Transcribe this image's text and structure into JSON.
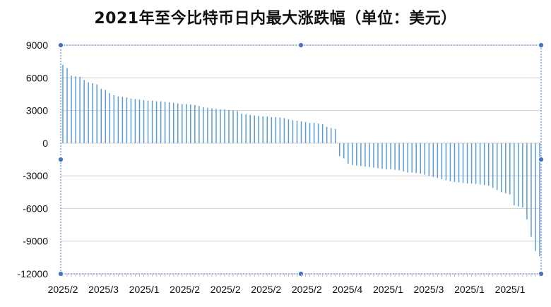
{
  "chart_data": {
    "type": "bar",
    "title": "2021年至今比特币日内最大涨跌幅（单位：美元）",
    "xlabel": "",
    "ylabel": "",
    "ylim": [
      -12000,
      9000
    ],
    "yticks": [
      9000,
      6000,
      3000,
      0,
      -3000,
      -6000,
      -9000,
      -12000
    ],
    "ytick_labels": [
      "9000",
      "6000",
      "3000",
      "0",
      "-3000",
      "-6000",
      "-9000",
      "-12000"
    ],
    "xtick_labels": [
      "2025/2",
      "2025/3",
      "2025/1",
      "2025/2",
      "2025/2",
      "2025/2",
      "2025/2",
      "2025/4",
      "2025/1",
      "2025/3",
      "2025/1",
      "2025/1"
    ],
    "grid": true,
    "bar_color": "#5b9bd5",
    "grid_color": "#d0d0d0",
    "handle_color": "#4472c4",
    "values": [
      7200,
      6900,
      6200,
      6150,
      6100,
      5800,
      5600,
      5500,
      5400,
      5000,
      4900,
      4600,
      4400,
      4300,
      4250,
      4200,
      4100,
      4050,
      4000,
      3950,
      3900,
      3900,
      3850,
      3850,
      3800,
      3750,
      3700,
      3650,
      3600,
      3600,
      3550,
      3500,
      3400,
      3300,
      3250,
      3200,
      3150,
      3100,
      3100,
      3050,
      3000,
      2950,
      2700,
      2650,
      2600,
      2550,
      2500,
      2450,
      2450,
      2400,
      2400,
      2350,
      2300,
      2200,
      2100,
      2050,
      2000,
      1950,
      1850,
      1850,
      1800,
      1750,
      1500,
      1400,
      1300,
      -1200,
      -1400,
      -1900,
      -2000,
      -2050,
      -2100,
      -2150,
      -2200,
      -2250,
      -2300,
      -2350,
      -2400,
      -2400,
      -2450,
      -2500,
      -2600,
      -2700,
      -2700,
      -2750,
      -2800,
      -2900,
      -3000,
      -3100,
      -3200,
      -3300,
      -3400,
      -3500,
      -3550,
      -3600,
      -3650,
      -3700,
      -3700,
      -3750,
      -3800,
      -3850,
      -3900,
      -4100,
      -4300,
      -4500,
      -4600,
      -4700,
      -5700,
      -5800,
      -5900,
      -7000,
      -8600,
      -9900,
      -10400
    ]
  }
}
